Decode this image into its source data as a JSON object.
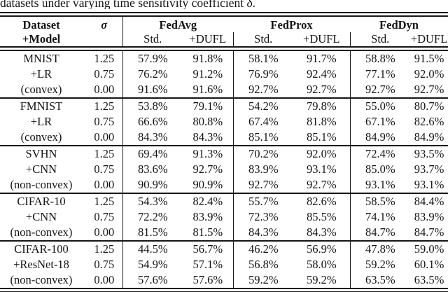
{
  "caption": "datasets under varying time sensitivity coefficient δ.",
  "table": {
    "header": {
      "dataset": "Dataset",
      "model": "+Model",
      "sigma": "σ",
      "fedavg": "FedAvg",
      "fedprox": "FedProx",
      "feddyn": "FedDyn",
      "std": "Std.",
      "dufl": "+DUFL"
    },
    "groups": [
      {
        "dataset": "MNIST",
        "model": "+LR",
        "convexity": "(convex)",
        "rows": [
          {
            "sigma": "1.25",
            "values": [
              "57.9%",
              "91.8%",
              "58.1%",
              "91.7%",
              "58.8%",
              "91.5%"
            ]
          },
          {
            "sigma": "0.75",
            "values": [
              "76.2%",
              "91.2%",
              "76.9%",
              "92.4%",
              "77.1%",
              "92.0%"
            ]
          },
          {
            "sigma": "0.00",
            "values": [
              "91.6%",
              "91.6%",
              "92.7%",
              "92.7%",
              "92.7%",
              "92.7%"
            ]
          }
        ]
      },
      {
        "dataset": "FMNIST",
        "model": "+LR",
        "convexity": "(convex)",
        "rows": [
          {
            "sigma": "1.25",
            "values": [
              "53.8%",
              "79.1%",
              "54.2%",
              "79.8%",
              "55.0%",
              "80.7%"
            ]
          },
          {
            "sigma": "0.75",
            "values": [
              "66.6%",
              "80.8%",
              "67.4%",
              "81.8%",
              "67.1%",
              "82.6%"
            ]
          },
          {
            "sigma": "0.00",
            "values": [
              "84.3%",
              "84.3%",
              "85.1%",
              "85.1%",
              "84.9%",
              "84.9%"
            ]
          }
        ]
      },
      {
        "dataset": "SVHN",
        "model": "+CNN",
        "convexity": "(non-convex)",
        "rows": [
          {
            "sigma": "1.25",
            "values": [
              "69.4%",
              "91.3%",
              "70.2%",
              "92.0%",
              "72.4%",
              "93.5%"
            ]
          },
          {
            "sigma": "0.75",
            "values": [
              "83.6%",
              "92.7%",
              "83.9%",
              "93.1%",
              "85.0%",
              "93.7%"
            ]
          },
          {
            "sigma": "0.00",
            "values": [
              "90.9%",
              "90.9%",
              "92.7%",
              "92.7%",
              "93.1%",
              "93.1%"
            ]
          }
        ]
      },
      {
        "dataset": "CIFAR-10",
        "model": "+CNN",
        "convexity": "(non-convex)",
        "rows": [
          {
            "sigma": "1.25",
            "values": [
              "54.3%",
              "82.4%",
              "55.7%",
              "82.6%",
              "58.5%",
              "84.4%"
            ]
          },
          {
            "sigma": "0.75",
            "values": [
              "72.2%",
              "83.9%",
              "72.3%",
              "85.5%",
              "74.1%",
              "83.9%"
            ]
          },
          {
            "sigma": "0.00",
            "values": [
              "81.5%",
              "81.5%",
              "84.3%",
              "84.3%",
              "84.7%",
              "84.7%"
            ]
          }
        ]
      },
      {
        "dataset": "CIFAR-100",
        "model": "+ResNet-18",
        "convexity": "(non-convex)",
        "rows": [
          {
            "sigma": "1.25",
            "values": [
              "44.5%",
              "56.7%",
              "46.2%",
              "56.9%",
              "47.8%",
              "59.0%"
            ]
          },
          {
            "sigma": "0.75",
            "values": [
              "54.9%",
              "57.1%",
              "56.8%",
              "58.0%",
              "59.2%",
              "60.1%"
            ]
          },
          {
            "sigma": "0.00",
            "values": [
              "57.6%",
              "57.6%",
              "59.2%",
              "59.2%",
              "63.5%",
              "63.5%"
            ]
          }
        ]
      }
    ]
  }
}
